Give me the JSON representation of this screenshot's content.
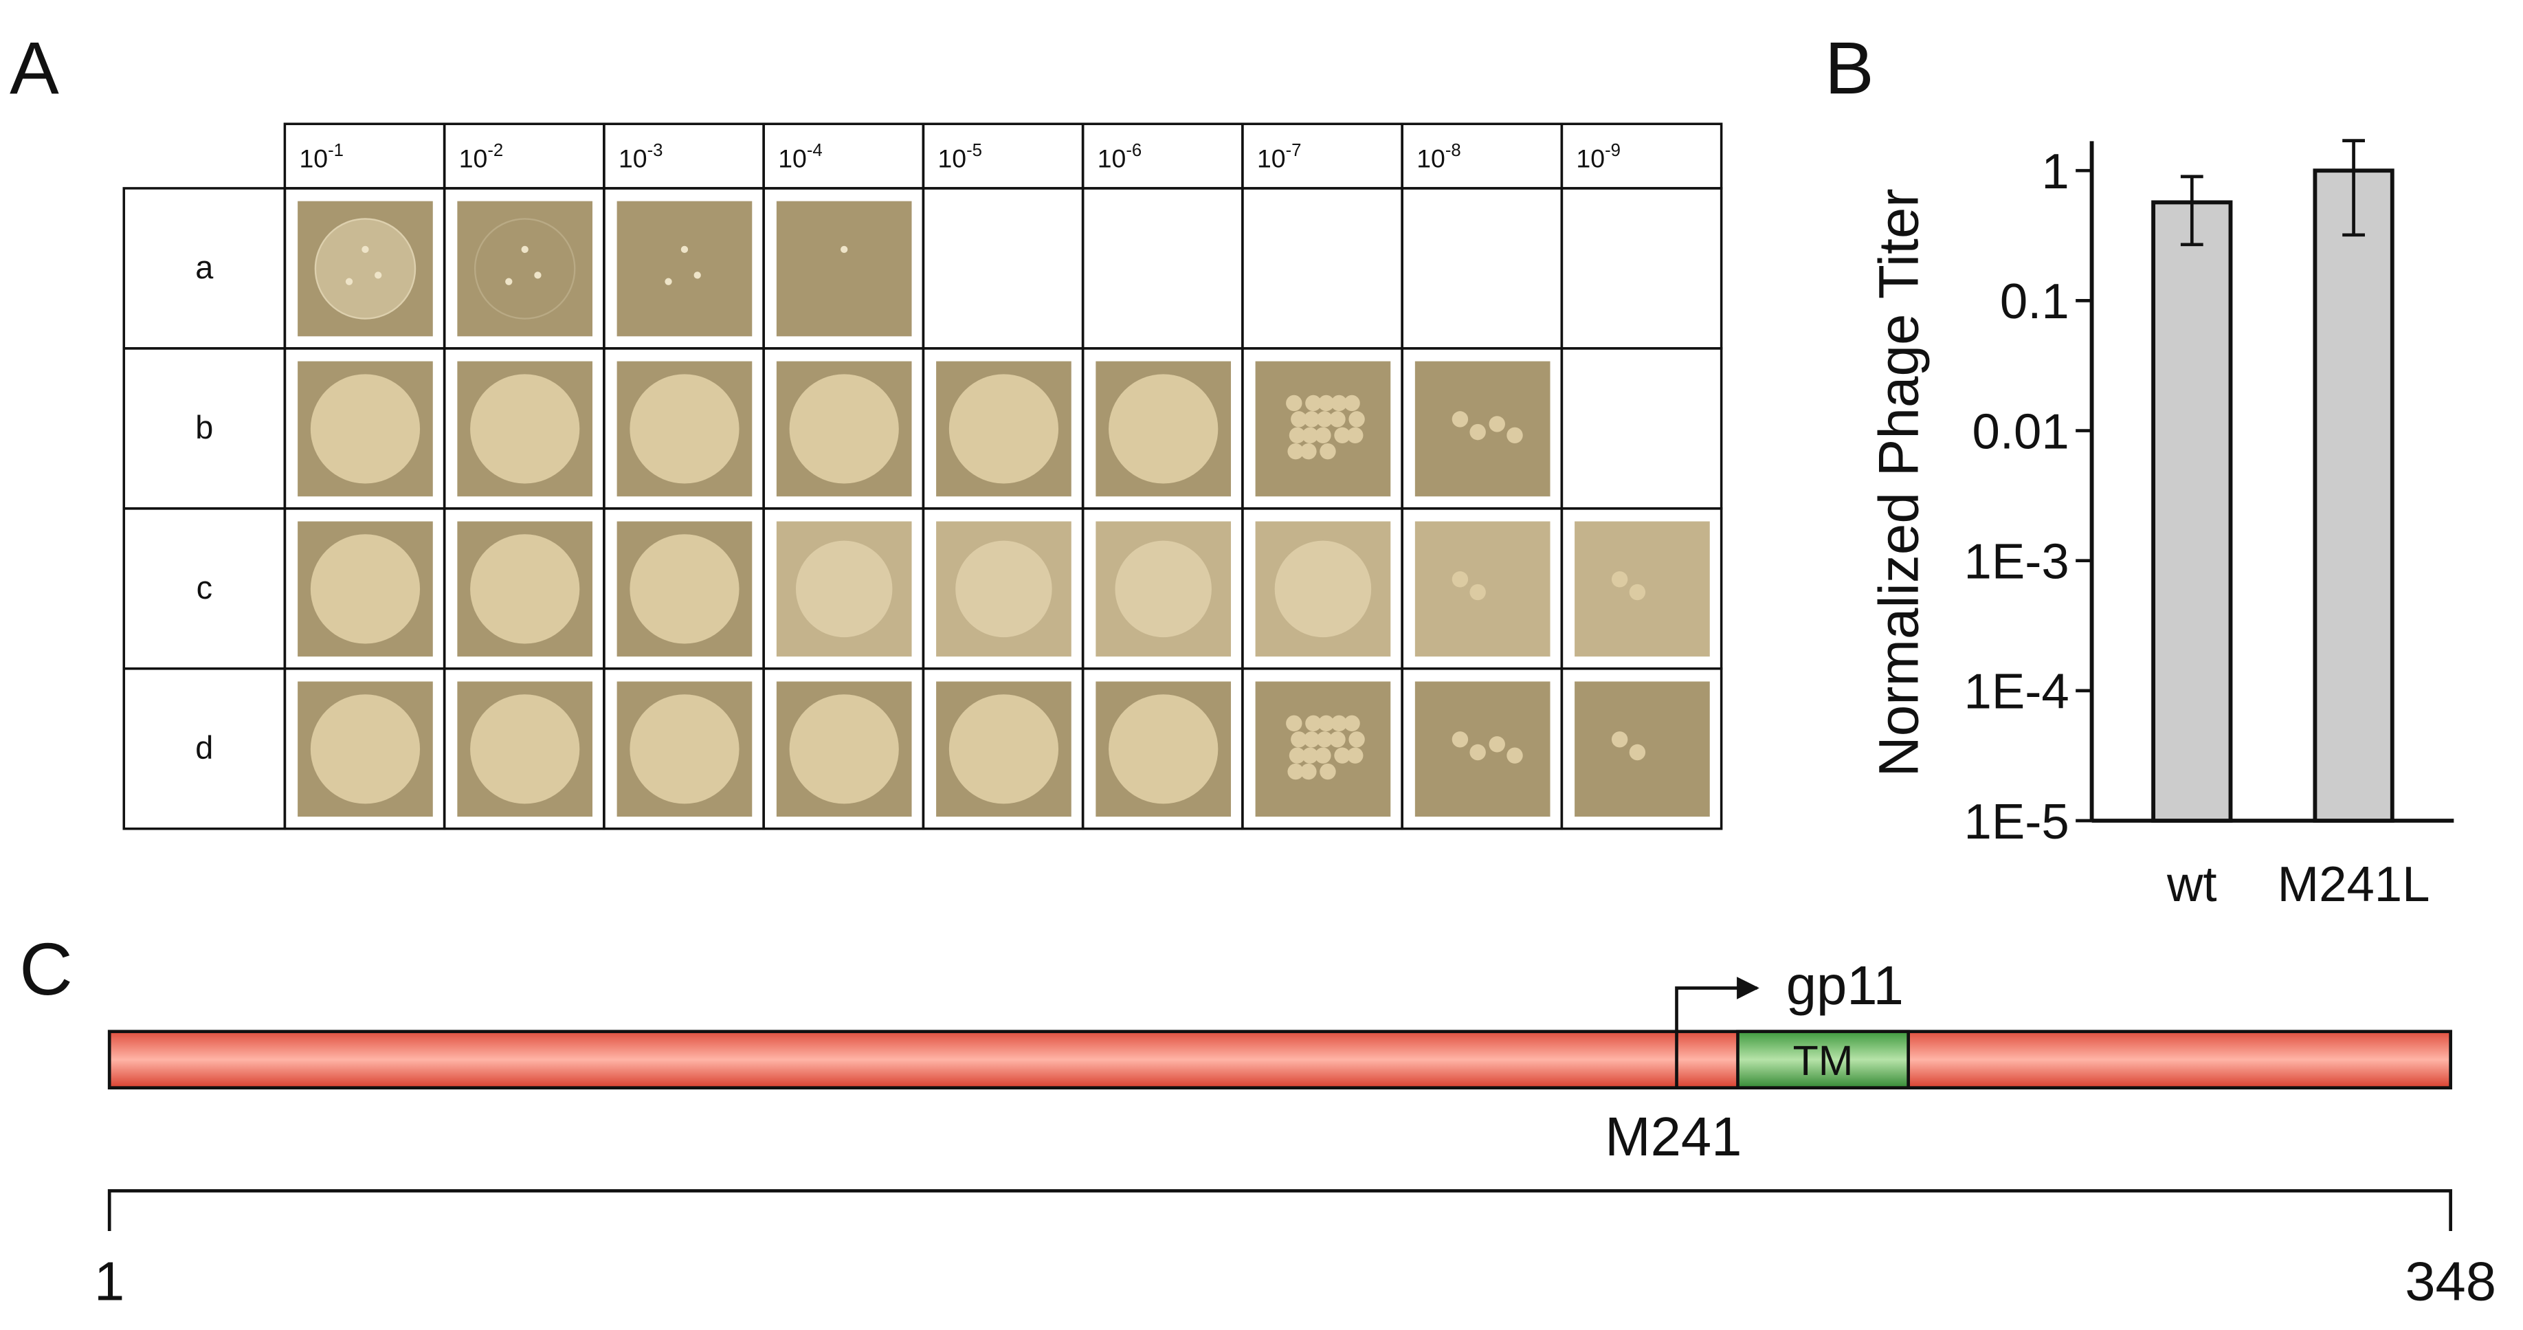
{
  "panel_a": {
    "label": "A",
    "dilutions": [
      {
        "base": "10",
        "exp": "-1"
      },
      {
        "base": "10",
        "exp": "-2"
      },
      {
        "base": "10",
        "exp": "-3"
      },
      {
        "base": "10",
        "exp": "-4"
      },
      {
        "base": "10",
        "exp": "-5"
      },
      {
        "base": "10",
        "exp": "-6"
      },
      {
        "base": "10",
        "exp": "-7"
      },
      {
        "base": "10",
        "exp": "-8"
      },
      {
        "base": "10",
        "exp": "-9"
      }
    ],
    "strains": [
      "a",
      "b",
      "c",
      "d"
    ]
  },
  "chart_data": {
    "type": "bar",
    "panel_label": "B",
    "y_label": "Normalized Phage Titer",
    "categories": [
      "wt",
      "M241L"
    ],
    "values": [
      0.57,
      1.0
    ],
    "error_low": [
      0.27,
      0.32
    ],
    "error_high": [
      0.9,
      1.7
    ],
    "color": "#cccccc",
    "log_scale": true,
    "ylim": [
      1e-05,
      2
    ],
    "yticks": [
      {
        "value": 1e-05,
        "label": "1E-5"
      },
      {
        "value": 0.0001,
        "label": "1E-4"
      },
      {
        "value": 0.001,
        "label": "1E-3"
      },
      0.01,
      0.1,
      1
    ]
  },
  "panel_c": {
    "label": "C",
    "domain": "TM",
    "start_label": "M241",
    "product": "gp11",
    "axis_start": "1",
    "axis_end": "348"
  }
}
